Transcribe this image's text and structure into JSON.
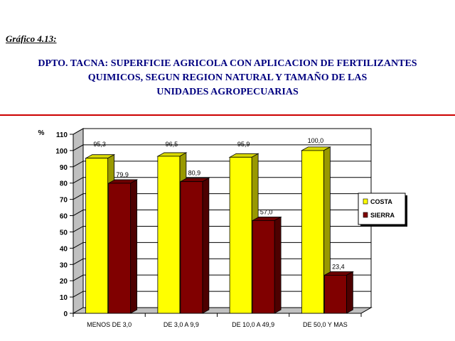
{
  "figure_label": "Gráfico  4.13:",
  "title_lines": [
    "DPTO. TACNA: SUPERFICIE AGRICOLA CON APLICACION DE FERTILIZANTES",
    "QUIMICOS, SEGUN REGION NATURAL Y TAMAÑO DE LAS",
    "UNIDADES AGROPECUARIAS"
  ],
  "colors": {
    "title": "#000080",
    "rule": "#cc0000",
    "costa": "#ffff00",
    "sierra": "#800000"
  },
  "chart_data": {
    "type": "bar",
    "title": "",
    "ylabel": "%",
    "xlabel": "",
    "ylim": [
      0,
      110
    ],
    "yticks": [
      0,
      10,
      20,
      30,
      40,
      50,
      60,
      70,
      80,
      90,
      100,
      110
    ],
    "categories": [
      "MENOS DE 3,0",
      "DE 3,0 A 9,9",
      "DE 10,0 A 49,9",
      "DE 50,0 Y MAS"
    ],
    "series": [
      {
        "name": "COSTA",
        "values": [
          95.3,
          96.5,
          95.9,
          100.0
        ],
        "labels": [
          "95,3",
          "96,5",
          "95,9",
          "100,0"
        ],
        "color": "#ffff00"
      },
      {
        "name": "SIERRA",
        "values": [
          79.9,
          80.9,
          57.0,
          23.4
        ],
        "labels": [
          "79,9",
          "80,9",
          "57,0",
          "23,4"
        ],
        "color": "#800000"
      }
    ],
    "grid": true,
    "legend": "right",
    "style": "3d-bar"
  }
}
